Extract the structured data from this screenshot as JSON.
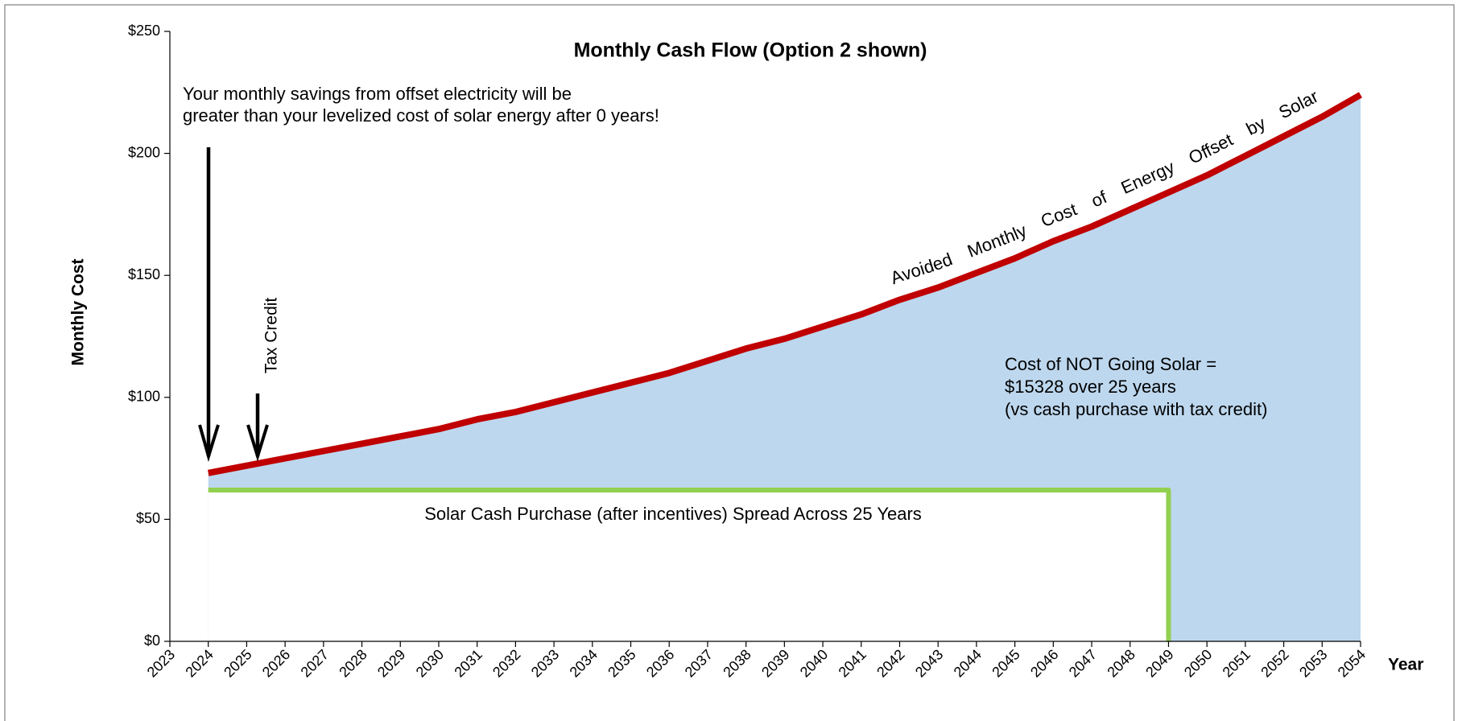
{
  "chart_data": {
    "type": "line",
    "title": "Monthly Cash Flow  (Option 2 shown)",
    "y_label": "Monthly Cost",
    "x_label": "Year",
    "xlim": [
      2023,
      2054
    ],
    "xticks": [
      2023,
      2024,
      2025,
      2026,
      2027,
      2028,
      2029,
      2030,
      2031,
      2032,
      2033,
      2034,
      2035,
      2036,
      2037,
      2038,
      2039,
      2040,
      2041,
      2042,
      2043,
      2044,
      2045,
      2046,
      2047,
      2048,
      2049,
      2050,
      2051,
      2052,
      2053,
      2054
    ],
    "ylim": [
      0,
      250
    ],
    "yticks": [
      {
        "value": 0,
        "label": "$0"
      },
      {
        "value": 50,
        "label": "$50"
      },
      {
        "value": 100,
        "label": "$100"
      },
      {
        "value": 150,
        "label": "$150"
      },
      {
        "value": 200,
        "label": "$200"
      },
      {
        "value": 250,
        "label": "$250"
      }
    ],
    "series": [
      {
        "color": "#c00000",
        "fill": "#bdd7ee",
        "x": [
          2024,
          2025,
          2026,
          2027,
          2028,
          2029,
          2030,
          2031,
          2032,
          2033,
          2034,
          2035,
          2036,
          2037,
          2038,
          2039,
          2040,
          2041,
          2042,
          2043,
          2044,
          2045,
          2046,
          2047,
          2048,
          2049,
          2050,
          2051,
          2052,
          2053,
          2054
        ],
        "values": [
          69,
          72,
          75,
          78,
          81,
          84,
          87,
          91,
          94,
          98,
          102,
          106,
          110,
          115,
          120,
          124,
          129,
          134,
          140,
          145,
          151,
          157,
          164,
          170,
          177,
          184,
          191,
          199,
          207,
          215,
          224
        ]
      },
      {
        "color": "#92d050",
        "fill": "#ffffff",
        "x": [
          2024,
          2049,
          2049
        ],
        "values": [
          62,
          62,
          0
        ]
      }
    ],
    "annotations": {
      "savings": [
        "Your monthly savings from offset electricity will be",
        "greater than your levelized cost of solar energy after 0 years!"
      ],
      "tax_credit": "Tax Credit",
      "avoided": "Avoided Monthly Cost of Energy Offset by Solar",
      "not_solar": [
        "Cost of NOT Going Solar =",
        "$15328 over 25 years",
        "(vs cash purchase with tax credit)"
      ],
      "cash_purchase": "Solar Cash Purchase (after incentives) Spread Across 25 Years"
    }
  }
}
